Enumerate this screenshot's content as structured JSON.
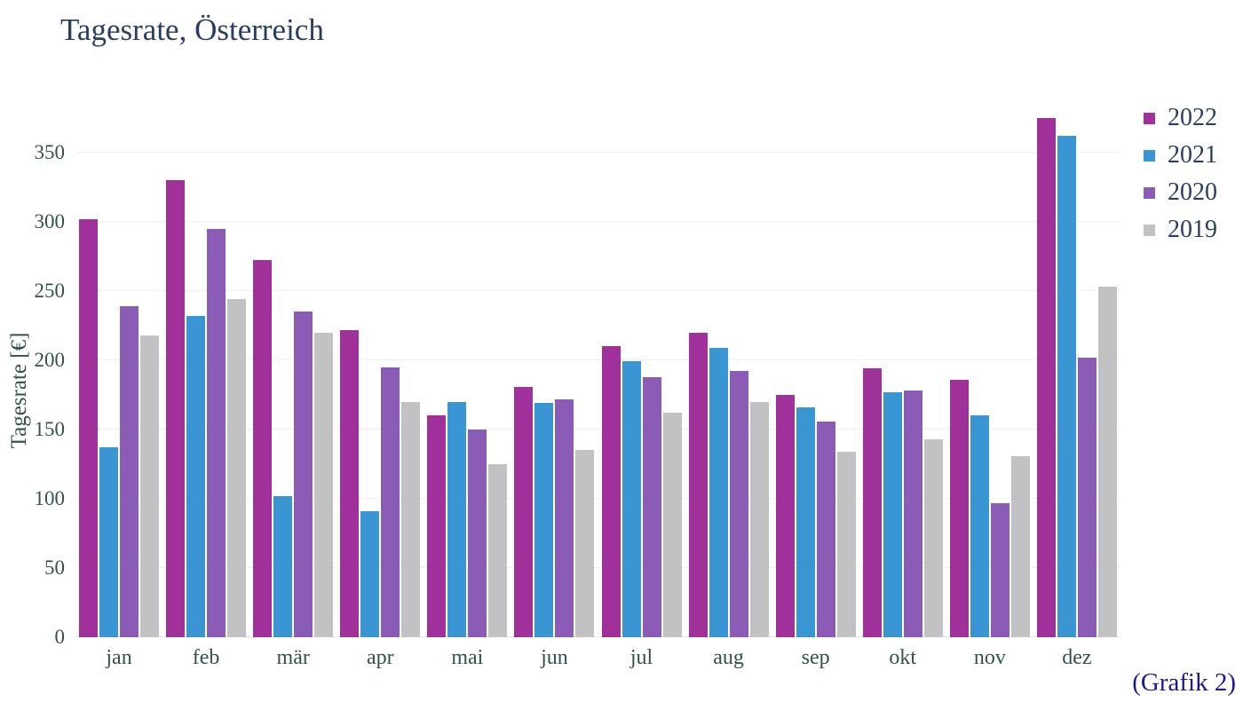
{
  "annotation": "(Grafik 2)",
  "chart_data": {
    "type": "bar",
    "title": "Tagesrate, Österreich",
    "xlabel": "",
    "ylabel": "Tagesrate [€]",
    "ylim": [
      0,
      383
    ],
    "yticks": [
      0,
      50,
      100,
      150,
      200,
      250,
      300,
      350
    ],
    "grid": true,
    "legend_position": "top-right",
    "categories": [
      "jan",
      "feb",
      "mär",
      "apr",
      "mai",
      "jun",
      "jul",
      "aug",
      "sep",
      "okt",
      "nov",
      "dez"
    ],
    "series": [
      {
        "name": "2022",
        "color": "#A0309A",
        "values": [
          302,
          330,
          272,
          222,
          160,
          181,
          210,
          220,
          175,
          194,
          186,
          375
        ]
      },
      {
        "name": "2021",
        "color": "#3A96D2",
        "values": [
          137,
          232,
          102,
          91,
          170,
          169,
          199,
          209,
          166,
          177,
          160,
          362
        ]
      },
      {
        "name": "2020",
        "color": "#8A5CB5",
        "values": [
          239,
          295,
          235,
          195,
          150,
          172,
          188,
          192,
          156,
          178,
          97,
          202
        ]
      },
      {
        "name": "2019",
        "color": "#C2C2C4",
        "values": [
          218,
          244,
          220,
          170,
          125,
          135,
          162,
          170,
          134,
          143,
          131,
          253
        ]
      }
    ]
  },
  "colors": {
    "title_text": "#2a3f5f",
    "axis_text": "#33524e",
    "legend_text": "#2a3f5f",
    "annotation_text": "#1b1b8e",
    "gridline": "#eef0f2",
    "background": "#ffffff"
  }
}
